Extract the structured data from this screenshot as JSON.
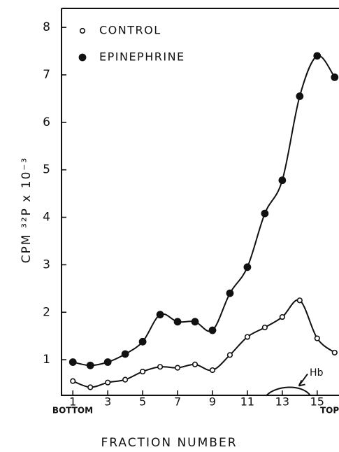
{
  "chart_data": {
    "type": "line",
    "y_label": "CPM ³²P x 10⁻³",
    "x_label": "FRACTION NUMBER",
    "annotations": [
      "BOTTOM",
      "TOP",
      "Hb"
    ],
    "x": [
      1,
      2,
      3,
      4,
      5,
      6,
      7,
      8,
      9,
      10,
      11,
      12,
      13,
      14,
      15,
      16
    ],
    "series": [
      {
        "name": "CONTROL",
        "color": "#111111",
        "marker": "open",
        "values": [
          0.55,
          0.42,
          0.52,
          0.58,
          0.75,
          0.85,
          0.83,
          0.9,
          0.78,
          1.1,
          1.48,
          1.68,
          1.9,
          2.25,
          1.45,
          1.15
        ]
      },
      {
        "name": "EPINEPHRINE",
        "color": "#111111",
        "marker": "filled",
        "values": [
          0.95,
          0.88,
          0.95,
          1.12,
          1.38,
          1.95,
          1.8,
          1.8,
          1.62,
          2.4,
          2.95,
          4.08,
          4.78,
          6.55,
          7.4,
          6.95
        ]
      }
    ],
    "xlim": [
      0.35,
      16.25
    ],
    "xticks": [
      1,
      3,
      5,
      7,
      9,
      11,
      13,
      15
    ],
    "ylim": [
      0.25,
      8.4
    ],
    "yticks": [
      1,
      2,
      3,
      4,
      5,
      6,
      7,
      8
    ],
    "legend": "upper left",
    "grid": false
  }
}
